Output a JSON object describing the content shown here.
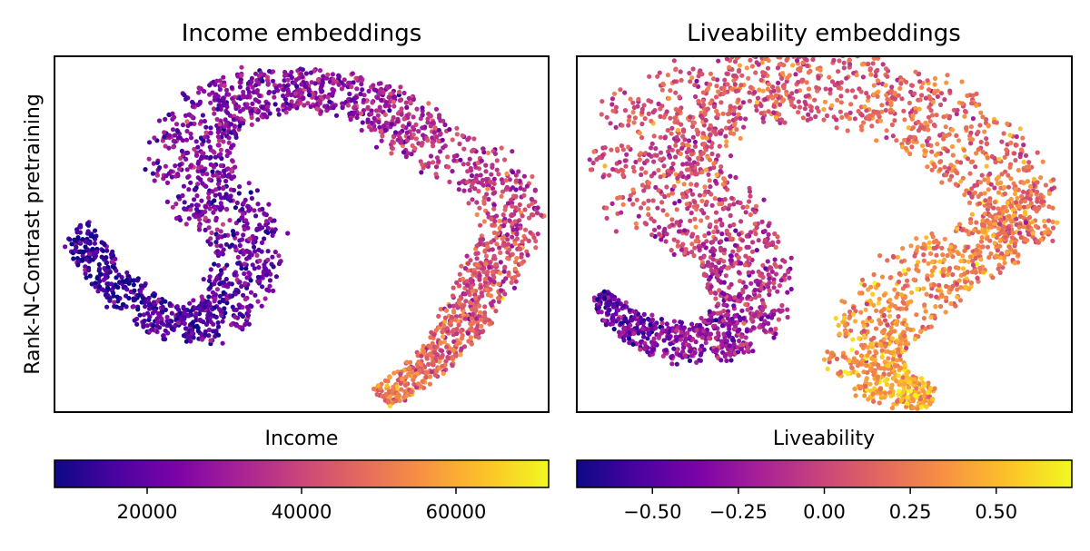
{
  "ylabel_shared": "Rank-N-Contrast pretraining",
  "chart_data": [
    {
      "type": "scatter",
      "title": "Income embeddings",
      "xlabel": "",
      "ylabel": "Rank-N-Contrast pretraining",
      "grid": false,
      "axis_ticks": "none",
      "colormap": "plasma",
      "colorbar": {
        "label": "Income",
        "range": [
          8000,
          72000
        ],
        "ticks": [
          20000,
          40000,
          60000
        ],
        "tick_labels": [
          "20000",
          "40000",
          "60000"
        ]
      },
      "embedding_range": {
        "x": [
          0,
          1
        ],
        "y": [
          0,
          1
        ]
      },
      "clusters": [
        {
          "name": "left arm",
          "path": [
            [
              0.04,
              0.48
            ],
            [
              0.1,
              0.61
            ],
            [
              0.17,
              0.7
            ],
            [
              0.25,
              0.76
            ],
            [
              0.33,
              0.74
            ],
            [
              0.38,
              0.65
            ],
            [
              0.4,
              0.54
            ],
            [
              0.35,
              0.44
            ],
            [
              0.29,
              0.36
            ],
            [
              0.27,
              0.27
            ],
            [
              0.3,
              0.17
            ],
            [
              0.38,
              0.11
            ],
            [
              0.46,
              0.09
            ],
            [
              0.54,
              0.1
            ]
          ],
          "half_width": [
            0.03,
            0.04,
            0.045,
            0.05,
            0.06,
            0.065,
            0.07,
            0.075,
            0.08,
            0.085,
            0.08,
            0.07,
            0.06,
            0.055
          ],
          "values": [
            11000,
            13000,
            15000,
            17000,
            19000,
            21000,
            22000,
            23000,
            24000,
            25000,
            25000,
            26000,
            27000,
            29000
          ]
        },
        {
          "name": "right arm",
          "path": [
            [
              0.54,
              0.1
            ],
            [
              0.62,
              0.12
            ],
            [
              0.7,
              0.17
            ],
            [
              0.76,
              0.25
            ],
            [
              0.89,
              0.33
            ],
            [
              0.93,
              0.47
            ],
            [
              0.89,
              0.58
            ],
            [
              0.86,
              0.66
            ],
            [
              0.83,
              0.75
            ],
            [
              0.78,
              0.84
            ],
            [
              0.72,
              0.91
            ],
            [
              0.66,
              0.96
            ]
          ],
          "half_width": [
            0.055,
            0.06,
            0.065,
            0.07,
            0.065,
            0.06,
            0.055,
            0.05,
            0.045,
            0.04,
            0.035,
            0.03
          ],
          "values": [
            29000,
            31000,
            33000,
            35000,
            37000,
            39000,
            41000,
            43000,
            45000,
            47000,
            49000,
            52000
          ]
        }
      ]
    },
    {
      "type": "scatter",
      "title": "Liveability embeddings",
      "xlabel": "",
      "ylabel": "",
      "grid": false,
      "axis_ticks": "none",
      "colormap": "plasma",
      "colorbar": {
        "label": "Liveability",
        "range": [
          -0.72,
          0.72
        ],
        "ticks": [
          -0.5,
          -0.25,
          0.0,
          0.25,
          0.5
        ],
        "tick_labels": [
          "−0.50",
          "−0.25",
          "0.00",
          "0.25",
          "0.50"
        ]
      },
      "embedding_range": {
        "x": [
          0,
          1
        ],
        "y": [
          0,
          1
        ]
      },
      "clusters": [
        {
          "name": "left arm",
          "path": [
            [
              0.04,
              0.67
            ],
            [
              0.1,
              0.75
            ],
            [
              0.18,
              0.8
            ],
            [
              0.26,
              0.81
            ],
            [
              0.33,
              0.77
            ],
            [
              0.36,
              0.68
            ],
            [
              0.34,
              0.58
            ],
            [
              0.3,
              0.5
            ],
            [
              0.22,
              0.42
            ],
            [
              0.16,
              0.34
            ],
            [
              0.15,
              0.24
            ],
            [
              0.2,
              0.15
            ],
            [
              0.3,
              0.09
            ],
            [
              0.4,
              0.07
            ],
            [
              0.5,
              0.08
            ]
          ],
          "half_width": [
            0.02,
            0.04,
            0.05,
            0.06,
            0.07,
            0.08,
            0.09,
            0.1,
            0.12,
            0.13,
            0.13,
            0.12,
            0.11,
            0.1,
            0.09
          ],
          "values": [
            -0.5,
            -0.42,
            -0.34,
            -0.28,
            -0.22,
            -0.16,
            -0.1,
            -0.04,
            0.0,
            0.03,
            0.05,
            0.07,
            0.08,
            0.09,
            0.1
          ]
        },
        {
          "name": "right arm",
          "path": [
            [
              0.5,
              0.08
            ],
            [
              0.62,
              0.11
            ],
            [
              0.72,
              0.17
            ],
            [
              0.8,
              0.26
            ],
            [
              0.87,
              0.36
            ],
            [
              0.9,
              0.45
            ],
            [
              0.89,
              0.52
            ],
            [
              0.78,
              0.55
            ],
            [
              0.7,
              0.63
            ],
            [
              0.62,
              0.73
            ],
            [
              0.58,
              0.81
            ],
            [
              0.6,
              0.89
            ],
            [
              0.65,
              0.94
            ],
            [
              0.72,
              0.96
            ]
          ],
          "half_width": [
            0.09,
            0.1,
            0.1,
            0.1,
            0.085,
            0.07,
            0.06,
            0.08,
            0.09,
            0.09,
            0.08,
            0.07,
            0.05,
            0.03
          ],
          "values": [
            0.12,
            0.15,
            0.18,
            0.2,
            0.22,
            0.24,
            0.26,
            0.28,
            0.3,
            0.33,
            0.36,
            0.39,
            0.41,
            0.43
          ]
        }
      ]
    }
  ]
}
